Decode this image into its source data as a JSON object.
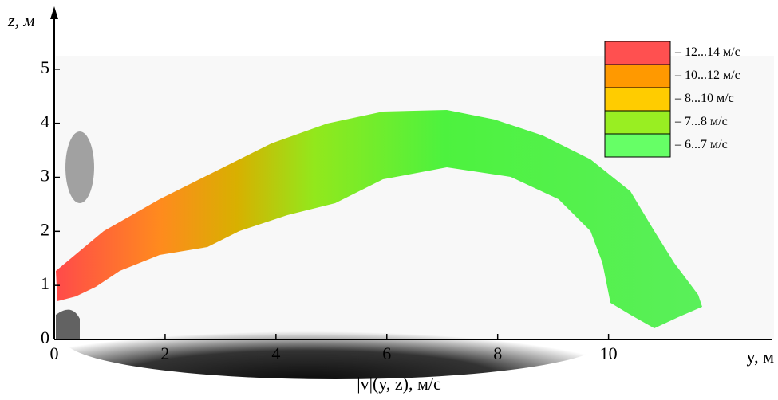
{
  "chart_data": {
    "type": "field",
    "xlabel": "y, м",
    "ylabel": "z, м",
    "caption": "|v|(y, z), м/с",
    "xlim": [
      0,
      13
    ],
    "ylim": [
      0,
      6
    ],
    "xticks": [
      0,
      2,
      4,
      6,
      8,
      10
    ],
    "yticks": [
      0,
      1,
      2,
      3,
      4,
      5
    ],
    "legend": [
      {
        "label": "– 12...14 м/с",
        "color": "#ff5050"
      },
      {
        "label": "– 10...12 м/с",
        "color": "#ff9900"
      },
      {
        "label": "– 8...10 м/с",
        "color": "#ffcc00"
      },
      {
        "label": "– 7...8 м/с",
        "color": "#99ee22"
      },
      {
        "label": "– 6...7 м/с",
        "color": "#66ff66"
      }
    ]
  }
}
